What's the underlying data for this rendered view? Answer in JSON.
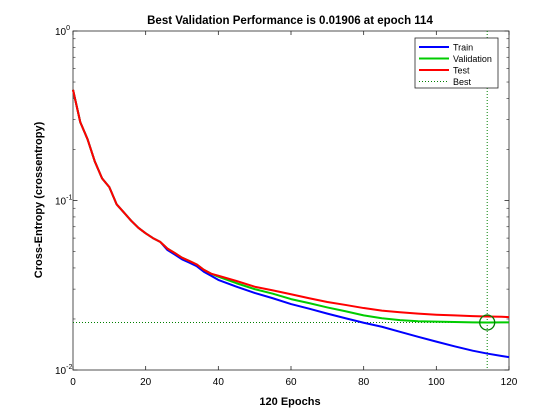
{
  "chart_data": {
    "type": "line",
    "title": "Best Validation Performance is 0.01906 at epoch 114",
    "xlabel": "120 Epochs",
    "ylabel": "Cross-Entropy  (crossentropy)",
    "y_scale": "log",
    "xlim": [
      0,
      120
    ],
    "ylim": [
      0.01,
      1
    ],
    "x_ticks": [
      {
        "value": 0,
        "label": "0"
      },
      {
        "value": 20,
        "label": "20"
      },
      {
        "value": 40,
        "label": "40"
      },
      {
        "value": 60,
        "label": "60"
      },
      {
        "value": 80,
        "label": "80"
      },
      {
        "value": 100,
        "label": "100"
      },
      {
        "value": 120,
        "label": "120"
      }
    ],
    "y_ticks": [
      {
        "value": 0.01,
        "base": "10",
        "exp": "-2"
      },
      {
        "value": 0.1,
        "base": "10",
        "exp": "-1"
      },
      {
        "value": 1,
        "base": "10",
        "exp": "0"
      }
    ],
    "grid": false,
    "legend_position": "top-right",
    "series": [
      {
        "name": "Train",
        "color": "#0000ff",
        "points": [
          [
            0,
            0.45
          ],
          [
            2,
            0.29
          ],
          [
            4,
            0.23
          ],
          [
            6,
            0.17
          ],
          [
            8,
            0.135
          ],
          [
            10,
            0.12
          ],
          [
            12,
            0.095
          ],
          [
            14,
            0.085
          ],
          [
            16,
            0.076
          ],
          [
            18,
            0.069
          ],
          [
            20,
            0.064
          ],
          [
            22,
            0.06
          ],
          [
            24,
            0.057
          ],
          [
            26,
            0.051
          ],
          [
            28,
            0.048
          ],
          [
            30,
            0.045
          ],
          [
            32,
            0.043
          ],
          [
            34,
            0.041
          ],
          [
            36,
            0.038
          ],
          [
            38,
            0.036
          ],
          [
            40,
            0.034
          ],
          [
            45,
            0.031
          ],
          [
            50,
            0.0285
          ],
          [
            55,
            0.0265
          ],
          [
            60,
            0.0245
          ],
          [
            65,
            0.023
          ],
          [
            70,
            0.0215
          ],
          [
            75,
            0.0202
          ],
          [
            80,
            0.019
          ],
          [
            85,
            0.018
          ],
          [
            90,
            0.0168
          ],
          [
            95,
            0.0157
          ],
          [
            100,
            0.0147
          ],
          [
            105,
            0.0138
          ],
          [
            110,
            0.013
          ],
          [
            114,
            0.0125
          ],
          [
            118,
            0.0121
          ],
          [
            120,
            0.0119
          ]
        ]
      },
      {
        "name": "Validation",
        "color": "#00cc00",
        "points": [
          [
            0,
            0.45
          ],
          [
            2,
            0.29
          ],
          [
            4,
            0.23
          ],
          [
            6,
            0.17
          ],
          [
            8,
            0.135
          ],
          [
            10,
            0.12
          ],
          [
            12,
            0.095
          ],
          [
            14,
            0.085
          ],
          [
            16,
            0.076
          ],
          [
            18,
            0.069
          ],
          [
            20,
            0.064
          ],
          [
            22,
            0.06
          ],
          [
            24,
            0.057
          ],
          [
            26,
            0.052
          ],
          [
            28,
            0.049
          ],
          [
            30,
            0.046
          ],
          [
            32,
            0.044
          ],
          [
            34,
            0.042
          ],
          [
            36,
            0.039
          ],
          [
            38,
            0.037
          ],
          [
            40,
            0.0355
          ],
          [
            45,
            0.0325
          ],
          [
            50,
            0.03
          ],
          [
            55,
            0.0282
          ],
          [
            60,
            0.0262
          ],
          [
            65,
            0.0248
          ],
          [
            70,
            0.0234
          ],
          [
            75,
            0.0222
          ],
          [
            80,
            0.021
          ],
          [
            85,
            0.0202
          ],
          [
            90,
            0.0197
          ],
          [
            95,
            0.0194
          ],
          [
            100,
            0.0193
          ],
          [
            105,
            0.0192
          ],
          [
            110,
            0.0191
          ],
          [
            114,
            0.01906
          ],
          [
            118,
            0.0191
          ],
          [
            120,
            0.0191
          ]
        ]
      },
      {
        "name": "Test",
        "color": "#ff0000",
        "points": [
          [
            0,
            0.45
          ],
          [
            2,
            0.29
          ],
          [
            4,
            0.23
          ],
          [
            6,
            0.17
          ],
          [
            8,
            0.135
          ],
          [
            10,
            0.12
          ],
          [
            12,
            0.095
          ],
          [
            14,
            0.085
          ],
          [
            16,
            0.076
          ],
          [
            18,
            0.069
          ],
          [
            20,
            0.064
          ],
          [
            22,
            0.06
          ],
          [
            24,
            0.057
          ],
          [
            26,
            0.052
          ],
          [
            28,
            0.049
          ],
          [
            30,
            0.046
          ],
          [
            32,
            0.044
          ],
          [
            34,
            0.042
          ],
          [
            36,
            0.039
          ],
          [
            38,
            0.037
          ],
          [
            40,
            0.036
          ],
          [
            45,
            0.0335
          ],
          [
            50,
            0.031
          ],
          [
            55,
            0.0295
          ],
          [
            60,
            0.028
          ],
          [
            65,
            0.0265
          ],
          [
            70,
            0.0252
          ],
          [
            75,
            0.0242
          ],
          [
            80,
            0.0232
          ],
          [
            85,
            0.0224
          ],
          [
            90,
            0.0219
          ],
          [
            95,
            0.0215
          ],
          [
            100,
            0.0212
          ],
          [
            105,
            0.021
          ],
          [
            110,
            0.0208
          ],
          [
            114,
            0.0207
          ],
          [
            118,
            0.0206
          ],
          [
            120,
            0.0205
          ]
        ]
      }
    ],
    "best": {
      "name": "Best",
      "epoch": 114,
      "value": 0.01906,
      "color": "#008000"
    }
  }
}
